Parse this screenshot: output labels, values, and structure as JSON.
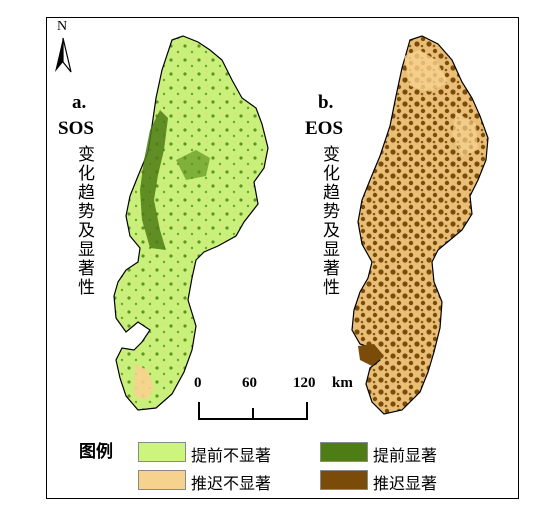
{
  "north": "N",
  "panel_a": {
    "letter": "a.",
    "index": "SOS",
    "desc": "变化趋势及显著性"
  },
  "panel_b": {
    "letter": "b.",
    "index": "EOS",
    "desc": "变化趋势及显著性"
  },
  "scale": {
    "ticks": [
      "0",
      "60",
      "120"
    ],
    "unit": "km"
  },
  "legend": {
    "title": "图例",
    "items": [
      {
        "label": "提前不显著",
        "color": "#ccf57e"
      },
      {
        "label": "提前显著",
        "color": "#4e7d16"
      },
      {
        "label": "推迟不显著",
        "color": "#f7d28e"
      },
      {
        "label": "推迟显著",
        "color": "#7a4b09"
      }
    ]
  }
}
